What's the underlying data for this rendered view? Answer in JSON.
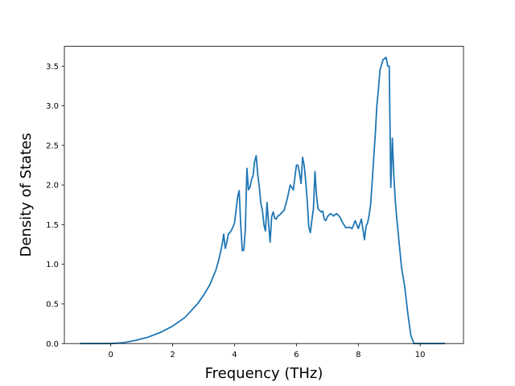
{
  "chart_data": {
    "type": "line",
    "title": "",
    "xlabel": "Frequency (THz)",
    "ylabel": "Density of States",
    "xlim": [
      -1.5,
      11.4
    ],
    "ylim": [
      0.0,
      3.75
    ],
    "xticks": [
      0,
      2,
      4,
      6,
      8,
      10
    ],
    "yticks": [
      0.0,
      0.5,
      1.0,
      1.5,
      2.0,
      2.5,
      3.0,
      3.5
    ],
    "xtick_labels": [
      "0",
      "2",
      "4",
      "6",
      "8",
      "10"
    ],
    "ytick_labels": [
      "0.0",
      "0.5",
      "1.0",
      "1.5",
      "2.0",
      "2.5",
      "3.0",
      "3.5"
    ],
    "grid": false,
    "line_color": "#1f77b4",
    "series": [
      {
        "x": [
          -1.0,
          -0.5,
          0.0,
          0.4,
          0.8,
          1.2,
          1.6,
          2.0,
          2.4,
          2.8,
          3.0,
          3.2,
          3.4,
          3.5,
          3.6,
          3.65,
          3.7,
          3.75,
          3.8,
          3.85,
          3.9,
          3.95,
          4.0,
          4.1,
          4.15,
          4.2,
          4.25,
          4.3,
          4.35,
          4.4,
          4.45,
          4.5,
          4.55,
          4.6,
          4.65,
          4.7,
          4.75,
          4.8,
          4.85,
          4.9,
          4.95,
          5.0,
          5.05,
          5.1,
          5.15,
          5.2,
          5.25,
          5.3,
          5.35,
          5.4,
          5.45,
          5.5,
          5.6,
          5.7,
          5.8,
          5.9,
          6.0,
          6.05,
          6.1,
          6.15,
          6.2,
          6.25,
          6.3,
          6.35,
          6.4,
          6.45,
          6.5,
          6.55,
          6.6,
          6.65,
          6.7,
          6.8,
          6.85,
          6.9,
          6.95,
          7.0,
          7.1,
          7.2,
          7.3,
          7.4,
          7.5,
          7.6,
          7.7,
          7.8,
          7.9,
          8.0,
          8.1,
          8.2,
          8.25,
          8.3,
          8.35,
          8.4,
          8.45,
          8.5,
          8.55,
          8.6,
          8.65,
          8.7,
          8.8,
          8.9,
          8.95,
          9.0,
          9.05,
          9.1,
          9.15,
          9.2,
          9.25,
          9.3,
          9.35,
          9.4,
          9.5,
          9.6,
          9.7,
          9.8,
          9.85,
          10.0,
          10.4,
          10.8
        ],
        "y": [
          0.0,
          0.0,
          0.0,
          0.01,
          0.04,
          0.08,
          0.14,
          0.22,
          0.33,
          0.5,
          0.61,
          0.74,
          0.93,
          1.07,
          1.25,
          1.38,
          1.2,
          1.28,
          1.38,
          1.4,
          1.43,
          1.47,
          1.52,
          1.85,
          1.93,
          1.5,
          1.17,
          1.18,
          1.45,
          2.21,
          1.94,
          1.97,
          2.07,
          2.12,
          2.3,
          2.37,
          2.13,
          1.98,
          1.77,
          1.68,
          1.5,
          1.42,
          1.78,
          1.52,
          1.28,
          1.6,
          1.66,
          1.58,
          1.57,
          1.61,
          1.62,
          1.64,
          1.68,
          1.82,
          2.0,
          1.94,
          2.25,
          2.25,
          2.15,
          2.02,
          2.35,
          2.25,
          2.05,
          1.8,
          1.47,
          1.4,
          1.56,
          1.7,
          2.17,
          1.86,
          1.7,
          1.66,
          1.67,
          1.57,
          1.55,
          1.6,
          1.64,
          1.61,
          1.64,
          1.6,
          1.52,
          1.46,
          1.47,
          1.45,
          1.55,
          1.45,
          1.57,
          1.31,
          1.48,
          1.52,
          1.62,
          1.76,
          2.05,
          2.35,
          2.65,
          3.0,
          3.2,
          3.45,
          3.58,
          3.61,
          3.5,
          3.5,
          1.97,
          2.59,
          2.1,
          1.78,
          1.55,
          1.35,
          1.15,
          0.95,
          0.72,
          0.38,
          0.1,
          0.0,
          0.0,
          0.0,
          0.0,
          0.0
        ]
      }
    ]
  }
}
